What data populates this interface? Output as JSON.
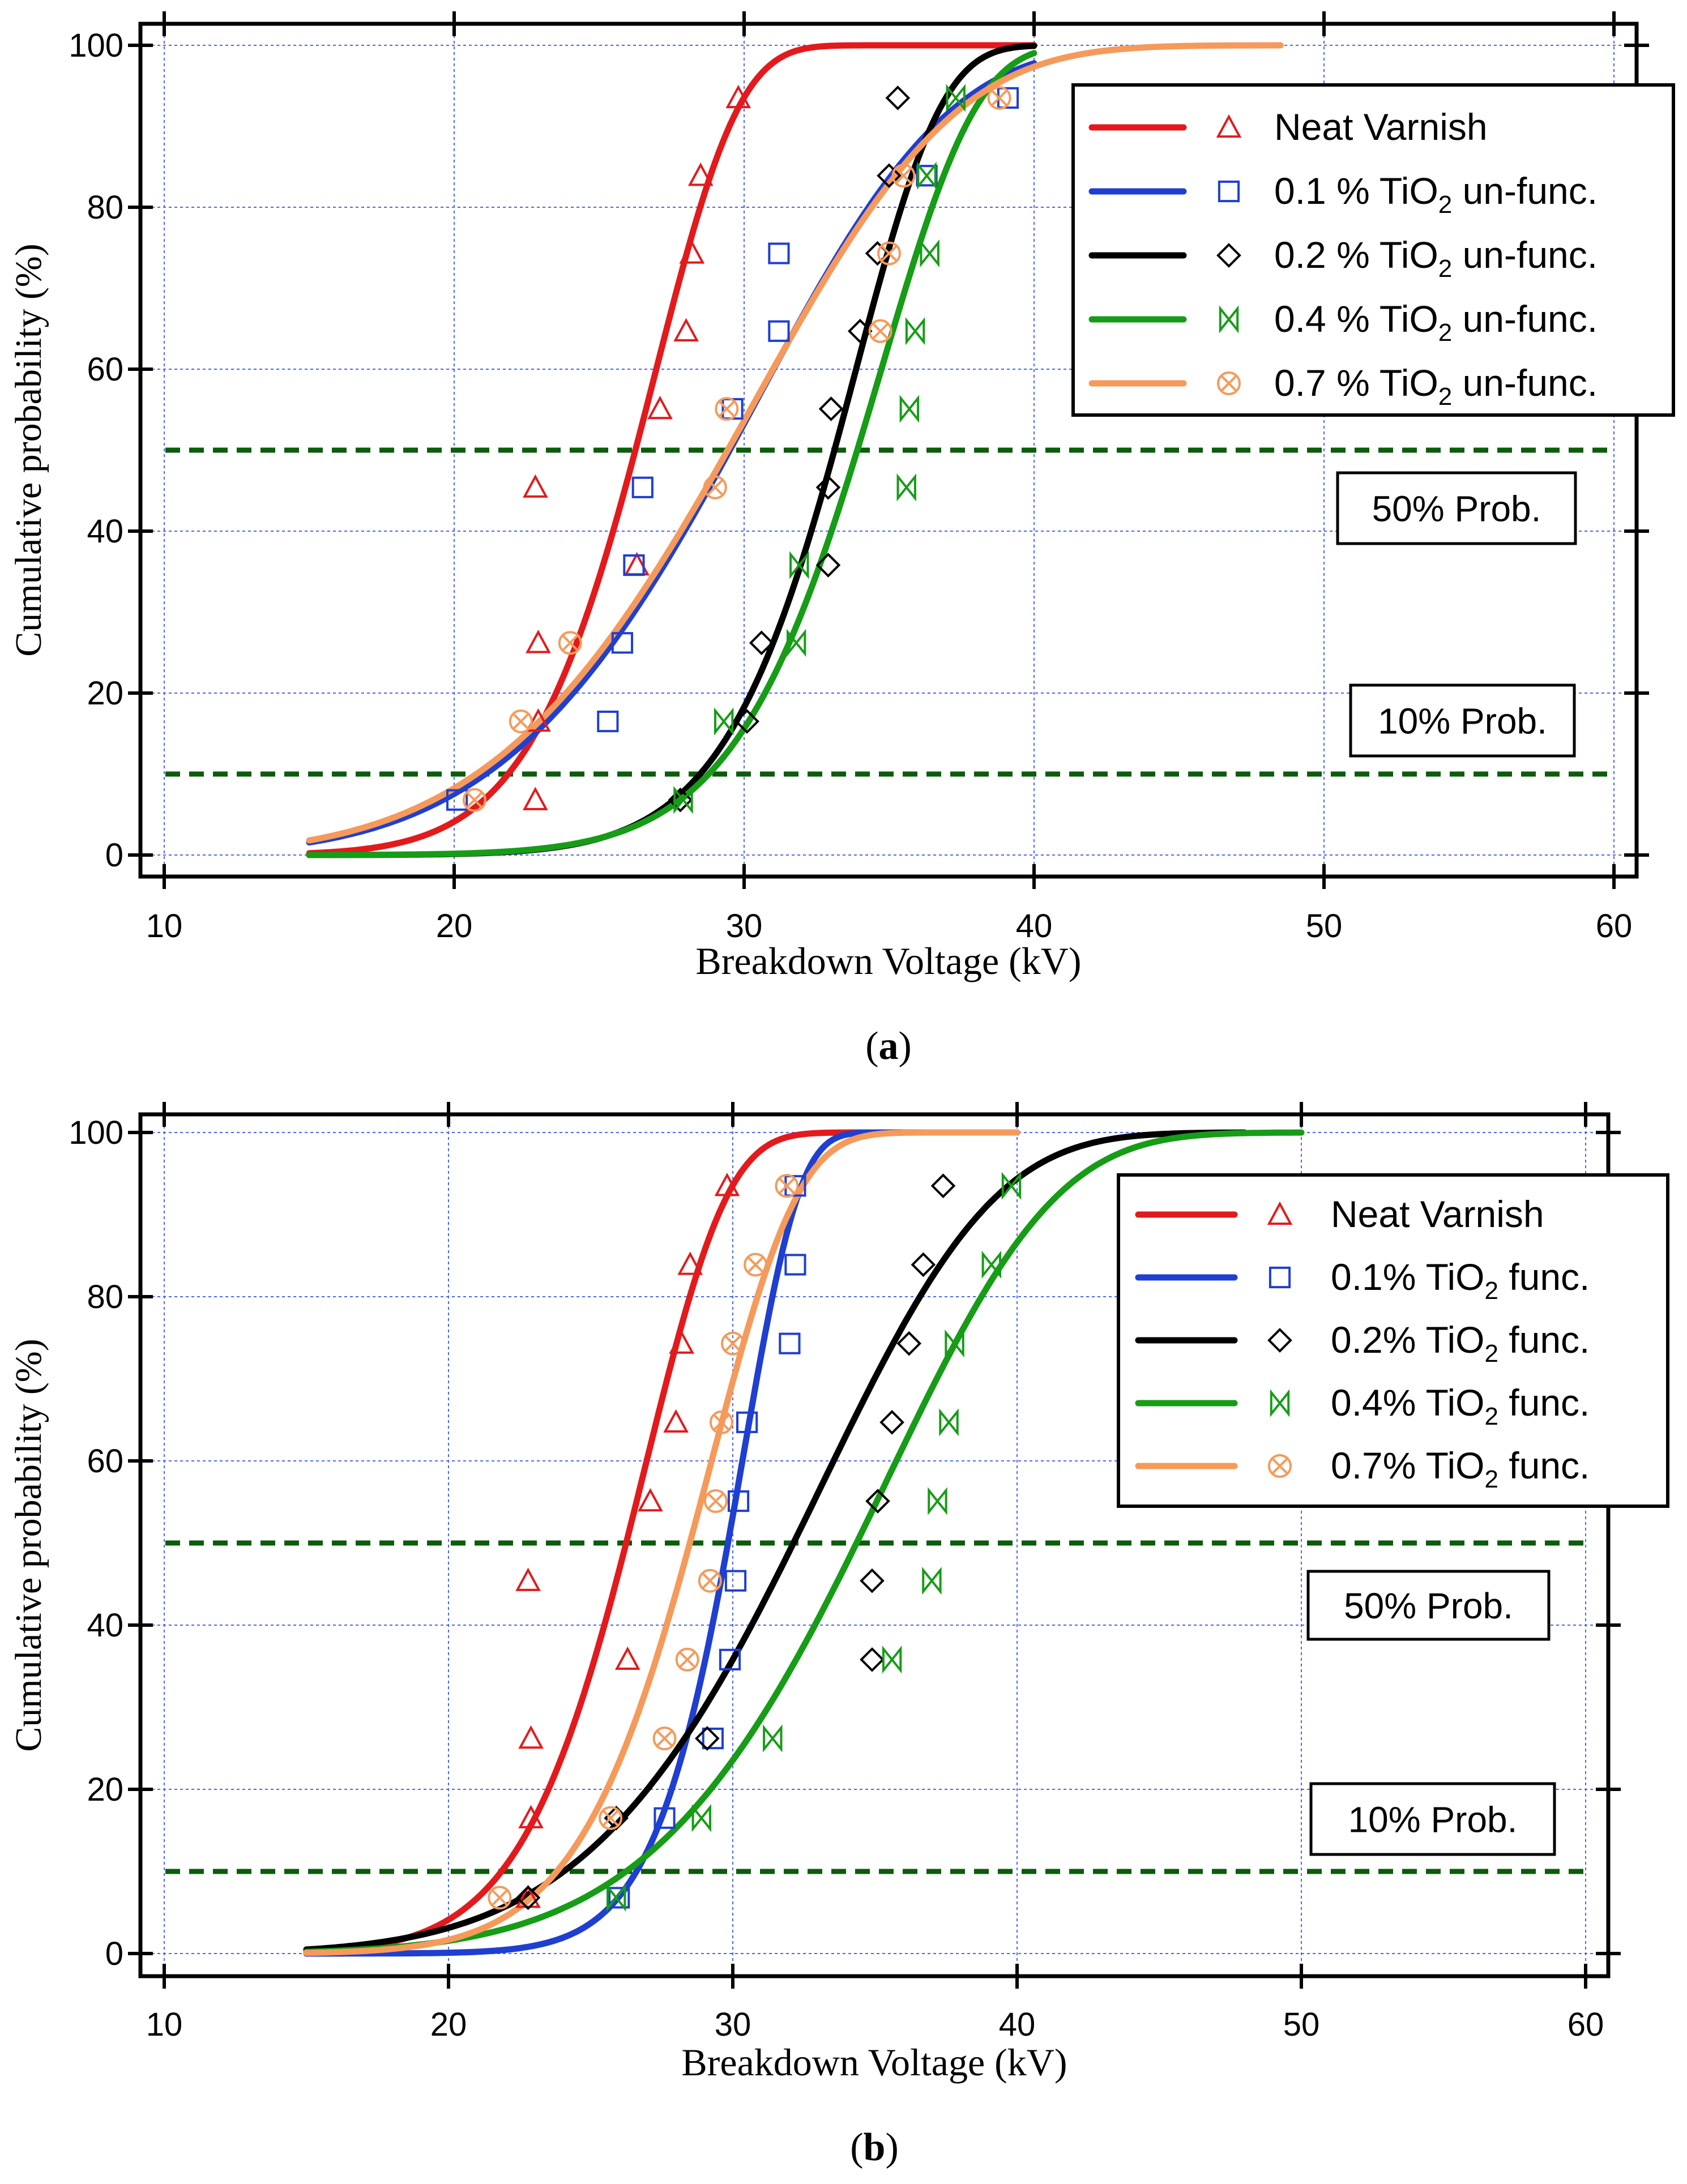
{
  "figure": {
    "panels": [
      {
        "label_open": "(",
        "label_letter": "a",
        "label_close": ")",
        "annotations": {
          "fifty": "50% Prob.",
          "ten": "10% Prob."
        }
      },
      {
        "label_open": "(",
        "label_letter": "b",
        "label_close": ")",
        "annotations": {
          "fifty": "50% Prob.",
          "ten": "10% Prob."
        }
      }
    ]
  },
  "chart_data": [
    {
      "type": "line",
      "panel": "a",
      "xlabel": "Breakdown Voltage (kV)",
      "ylabel": "Cumulative probability (%)",
      "xlim": [
        10,
        60
      ],
      "ylim": [
        0,
        100
      ],
      "xticks": [
        10,
        20,
        30,
        40,
        50,
        60
      ],
      "yticks": [
        0,
        20,
        40,
        60,
        80,
        100
      ],
      "grid": true,
      "legend_position": "top-right",
      "reference_lines": [
        {
          "y": 50,
          "label": "50% Prob.",
          "color": "#0b5c0b",
          "style": "dashed"
        },
        {
          "y": 10,
          "label": "10% Prob.",
          "color": "#0b5c0b",
          "style": "dashed"
        }
      ],
      "series": [
        {
          "name": "Neat Varnish",
          "label_parts": [
            "Neat Varnish"
          ],
          "color": "#e31a1c",
          "marker": "triangle",
          "weibull": {
            "alpha": 27.2,
            "beta": 10.3
          },
          "x_range": [
            15,
            40
          ],
          "points": [
            [
              22.8,
              6.8
            ],
            [
              22.9,
              16.5
            ],
            [
              22.9,
              26.2
            ],
            [
              22.8,
              45.4
            ],
            [
              26.3,
              35.8
            ],
            [
              27.1,
              55.1
            ],
            [
              28.0,
              64.7
            ],
            [
              28.2,
              74.3
            ],
            [
              28.5,
              83.9
            ],
            [
              29.8,
              93.5
            ]
          ]
        },
        {
          "name": "0.1 % TiO2 un-func.",
          "label_parts": [
            "0.1 % TiO",
            "2",
            " un-func."
          ],
          "color": "#1f3fd1",
          "marker": "square",
          "weibull": {
            "alpha": 31.5,
            "beta": 5.6
          },
          "x_range": [
            15,
            40
          ],
          "points": [
            [
              20.1,
              6.8
            ],
            [
              25.3,
              16.5
            ],
            [
              25.8,
              26.2
            ],
            [
              26.2,
              35.8
            ],
            [
              26.5,
              45.4
            ],
            [
              29.6,
              55.1
            ],
            [
              31.2,
              64.7
            ],
            [
              31.2,
              74.3
            ],
            [
              36.3,
              83.9
            ],
            [
              39.1,
              93.5
            ]
          ]
        },
        {
          "name": "0.2 % TiO2 un-func.",
          "label_parts": [
            "0.2 % TiO",
            "2",
            " un-func."
          ],
          "color": "#000000",
          "marker": "diamond",
          "weibull": {
            "alpha": 34.1,
            "beta": 12.5
          },
          "x_range": [
            15,
            40
          ],
          "points": [
            [
              27.8,
              6.8
            ],
            [
              30.1,
              16.5
            ],
            [
              30.6,
              26.2
            ],
            [
              32.9,
              35.8
            ],
            [
              32.9,
              45.4
            ],
            [
              33.0,
              55.1
            ],
            [
              34.0,
              64.7
            ],
            [
              34.6,
              74.3
            ],
            [
              35.0,
              83.9
            ],
            [
              35.3,
              93.5
            ]
          ]
        },
        {
          "name": "0.4 % TiO2 un-func.",
          "label_parts": [
            "0.4 % TiO",
            "2",
            " un-func."
          ],
          "color": "#179c17",
          "marker": "bowtie",
          "weibull": {
            "alpha": 35.0,
            "beta": 11.5
          },
          "x_range": [
            15,
            40
          ],
          "points": [
            [
              27.9,
              6.8
            ],
            [
              29.3,
              16.5
            ],
            [
              31.8,
              26.2
            ],
            [
              31.9,
              35.8
            ],
            [
              35.6,
              45.4
            ],
            [
              35.7,
              55.1
            ],
            [
              35.9,
              64.7
            ],
            [
              36.4,
              74.3
            ],
            [
              36.3,
              83.9
            ],
            [
              37.3,
              93.5
            ]
          ]
        },
        {
          "name": "0.7 % TiO2 un-func.",
          "label_parts": [
            "0.7 % TiO",
            "2",
            " un-func."
          ],
          "color": "#f59a5b",
          "marker": "circle-x",
          "weibull": {
            "alpha": 31.5,
            "beta": 5.4
          },
          "x_range": [
            15,
            48.5
          ],
          "points": [
            [
              20.7,
              6.8
            ],
            [
              22.3,
              16.5
            ],
            [
              24.0,
              26.2
            ],
            [
              29.0,
              45.4
            ],
            [
              29.4,
              55.1
            ],
            [
              34.7,
              64.7
            ],
            [
              35.0,
              74.3
            ],
            [
              35.5,
              83.9
            ],
            [
              38.8,
              93.5
            ]
          ]
        }
      ]
    },
    {
      "type": "line",
      "panel": "b",
      "xlabel": "Breakdown Voltage (kV)",
      "ylabel": "Cumulative probability (%)",
      "xlim": [
        10,
        60
      ],
      "ylim": [
        0,
        100
      ],
      "xticks": [
        10,
        20,
        30,
        40,
        50,
        60
      ],
      "yticks": [
        0,
        20,
        40,
        60,
        80,
        100
      ],
      "grid": true,
      "legend_position": "top-right",
      "reference_lines": [
        {
          "y": 50,
          "label": "50% Prob.",
          "color": "#0b5c0b",
          "style": "dashed"
        },
        {
          "y": 10,
          "label": "10% Prob.",
          "color": "#0b5c0b",
          "style": "dashed"
        }
      ],
      "series": [
        {
          "name": "Neat Varnish",
          "label_parts": [
            "Neat Varnish"
          ],
          "color": "#e31a1c",
          "marker": "triangle",
          "weibull": {
            "alpha": 27.2,
            "beta": 10.3
          },
          "x_range": [
            15,
            40
          ],
          "points": [
            [
              22.8,
              6.8
            ],
            [
              22.9,
              16.5
            ],
            [
              22.9,
              26.2
            ],
            [
              22.8,
              45.4
            ],
            [
              26.3,
              35.8
            ],
            [
              27.1,
              55.1
            ],
            [
              28.0,
              64.7
            ],
            [
              28.2,
              74.3
            ],
            [
              28.5,
              83.9
            ],
            [
              29.8,
              93.5
            ]
          ]
        },
        {
          "name": "0.1% TiO2 func.",
          "label_parts": [
            "0.1% TiO",
            "2",
            " func."
          ],
          "color": "#1f3fd1",
          "marker": "square",
          "weibull": {
            "alpha": 30.5,
            "beta": 16.5
          },
          "x_range": [
            15,
            40
          ],
          "points": [
            [
              26.0,
              6.8
            ],
            [
              27.6,
              16.5
            ],
            [
              29.3,
              26.2
            ],
            [
              29.9,
              35.8
            ],
            [
              30.1,
              45.4
            ],
            [
              30.2,
              55.1
            ],
            [
              30.5,
              64.7
            ],
            [
              32.0,
              74.3
            ],
            [
              32.2,
              83.9
            ],
            [
              32.2,
              93.5
            ]
          ]
        },
        {
          "name": "0.2% TiO2 func.",
          "label_parts": [
            "0.2% TiO",
            "2",
            " func."
          ],
          "color": "#000000",
          "marker": "diamond",
          "weibull": {
            "alpha": 34.0,
            "beta": 6.5
          },
          "x_range": [
            15,
            48
          ],
          "points": [
            [
              22.8,
              6.8
            ],
            [
              25.9,
              16.5
            ],
            [
              29.1,
              26.2
            ],
            [
              34.9,
              35.8
            ],
            [
              34.9,
              45.4
            ],
            [
              35.1,
              55.1
            ],
            [
              35.6,
              64.7
            ],
            [
              36.2,
              74.3
            ],
            [
              36.7,
              83.9
            ],
            [
              37.4,
              93.5
            ]
          ]
        },
        {
          "name": "0.4% TiO2 func.",
          "label_parts": [
            "0.4% TiO",
            "2",
            " func."
          ],
          "color": "#179c17",
          "marker": "bowtie",
          "weibull": {
            "alpha": 36.2,
            "beta": 7.0
          },
          "x_range": [
            15,
            50
          ],
          "points": [
            [
              25.9,
              6.8
            ],
            [
              28.9,
              16.5
            ],
            [
              31.4,
              26.2
            ],
            [
              35.6,
              35.8
            ],
            [
              37.0,
              45.4
            ],
            [
              37.2,
              55.1
            ],
            [
              37.6,
              64.7
            ],
            [
              37.8,
              74.3
            ],
            [
              39.1,
              83.9
            ],
            [
              39.8,
              93.5
            ]
          ]
        },
        {
          "name": "0.7% TiO2 func.",
          "label_parts": [
            "0.7% TiO",
            "2",
            " func."
          ],
          "color": "#f59a5b",
          "marker": "circle-x",
          "weibull": {
            "alpha": 29.5,
            "beta": 10.5
          },
          "x_range": [
            15,
            40
          ],
          "points": [
            [
              21.8,
              6.8
            ],
            [
              25.7,
              16.5
            ],
            [
              27.6,
              26.2
            ],
            [
              28.4,
              35.8
            ],
            [
              29.2,
              45.4
            ],
            [
              29.4,
              55.1
            ],
            [
              29.6,
              64.7
            ],
            [
              30.0,
              74.3
            ],
            [
              30.8,
              83.9
            ],
            [
              31.9,
              93.5
            ]
          ]
        }
      ]
    }
  ]
}
